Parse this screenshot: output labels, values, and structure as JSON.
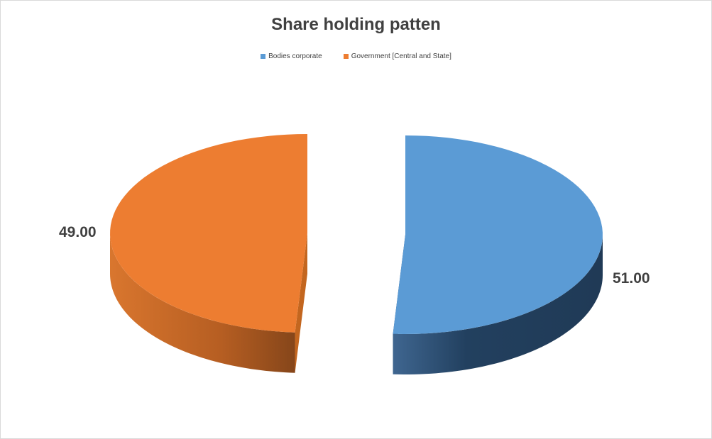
{
  "chart_data": {
    "type": "pie",
    "style": "3d-exploded",
    "title": "Share holding patten",
    "legend_position": "top",
    "slices": [
      {
        "name": "Bodies corporate",
        "value": 51.0,
        "label": "51.00",
        "color": "#5b9bd5"
      },
      {
        "name": "Government [Central and State]",
        "value": 49.0,
        "label": "49.00",
        "color": "#ed7d31"
      }
    ]
  }
}
